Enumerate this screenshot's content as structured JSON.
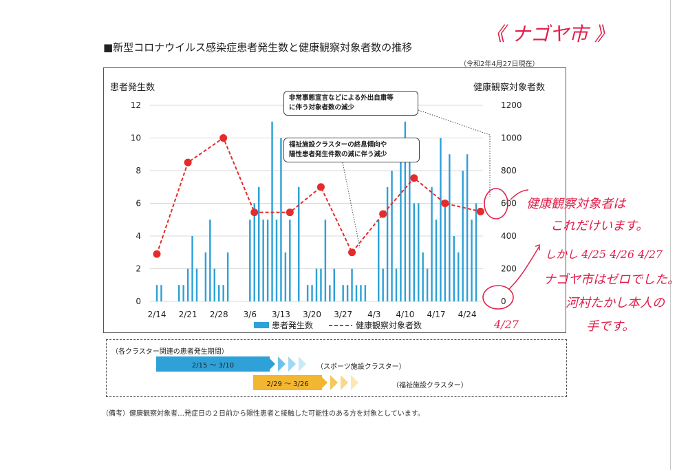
{
  "header": {
    "title": "■新型コロナウイルス感染症患者発生数と健康観察対象者数の推移",
    "as_of": "（令和2年4月27日現在）"
  },
  "chart_data": {
    "type": "bar+line",
    "left_axis_label": "患者発生数",
    "right_axis_label": "健康観察対象者数",
    "left_ticks": [
      "0",
      "2",
      "4",
      "6",
      "8",
      "10",
      "12"
    ],
    "right_ticks": [
      "0",
      "200",
      "400",
      "600",
      "800",
      "1000",
      "1200"
    ],
    "left_ylim": [
      0,
      12
    ],
    "right_ylim": [
      0,
      1200
    ],
    "x_tick_labels": [
      "2/14",
      "2/21",
      "2/28",
      "3/6",
      "3/13",
      "3/20",
      "3/27",
      "4/3",
      "4/10",
      "4/17",
      "4/24"
    ],
    "x_start": "2/14",
    "x_end": "4/26",
    "bar_series": {
      "name": "患者発生数",
      "color": "#2ea1d8",
      "values": [
        1,
        1,
        0,
        0,
        0,
        1,
        1,
        2,
        4,
        2,
        0,
        3,
        5,
        2,
        1,
        1,
        3,
        0,
        0,
        0,
        0,
        5,
        6,
        7,
        5,
        5,
        11,
        5,
        10,
        3,
        5,
        0,
        7,
        0,
        1,
        1,
        2,
        2,
        5,
        1,
        2,
        0,
        1,
        1,
        2,
        1,
        1,
        1,
        0,
        0,
        5,
        2,
        7,
        8,
        2,
        9,
        11,
        10,
        6,
        6,
        3,
        2,
        7,
        5,
        10,
        6,
        9,
        4,
        3,
        8,
        9,
        5,
        6
      ]
    },
    "line_series": {
      "name": "健康観察対象者数",
      "color": "#e52b2b",
      "points": [
        {
          "date": "2/14",
          "value": 290
        },
        {
          "date": "2/21",
          "value": 850
        },
        {
          "date": "2/29",
          "value": 1000
        },
        {
          "date": "3/7",
          "value": 545
        },
        {
          "date": "3/15",
          "value": 545
        },
        {
          "date": "3/22",
          "value": 700
        },
        {
          "date": "3/29",
          "value": 300
        },
        {
          "date": "4/5",
          "value": 535
        },
        {
          "date": "4/12",
          "value": 755
        },
        {
          "date": "4/19",
          "value": 600
        },
        {
          "date": "4/27",
          "value": 550
        }
      ]
    },
    "legend": {
      "bar_label": "患者発生数",
      "line_label": "健康観察対象者数",
      "placement": "bottom"
    },
    "annotations": [
      "非常事態宣言などによる外出自粛等に伴う対象者数の減少",
      "福祉施設クラスターの終息傾向や陽性患者発生件数の減に伴う減少"
    ]
  },
  "notes": {
    "note1_line1": "非常事態宣言などによる外出自粛等",
    "note1_line2": "に伴う対象者数の減少",
    "note2_line1": "福祉施設クラスターの終息傾向や",
    "note2_line2": "陽性患者発生件数の減に伴う減少"
  },
  "cluster_periods": {
    "heading": "（各クラスター関連の患者発生期間）",
    "sports": {
      "range": "2/15 〜 3/10",
      "label": "（スポーツ施設クラスター）",
      "color": "#2ea1d8"
    },
    "welfare": {
      "range": "2/29 〜 3/26",
      "label": "（福祉施設クラスター）",
      "color": "#f2b631"
    }
  },
  "remark": "（備考）健康観察対象者…発症日の２日前から陽性患者と接触した可能性のある方を対象としています。",
  "handwriting": {
    "city": "《 ナゴヤ市 》",
    "note_a_line1": "健康観察対象者は",
    "note_a_line2": "これだけいます。",
    "note_b_line1": "しかし 4/25 4/26 4/27",
    "note_b_line2": "ナゴヤ市はゼロでした。",
    "note_b_line3": "河村たかし本人の",
    "note_b_line4": "手です。",
    "date_mark": "4/27",
    "color": "#e0204a"
  }
}
